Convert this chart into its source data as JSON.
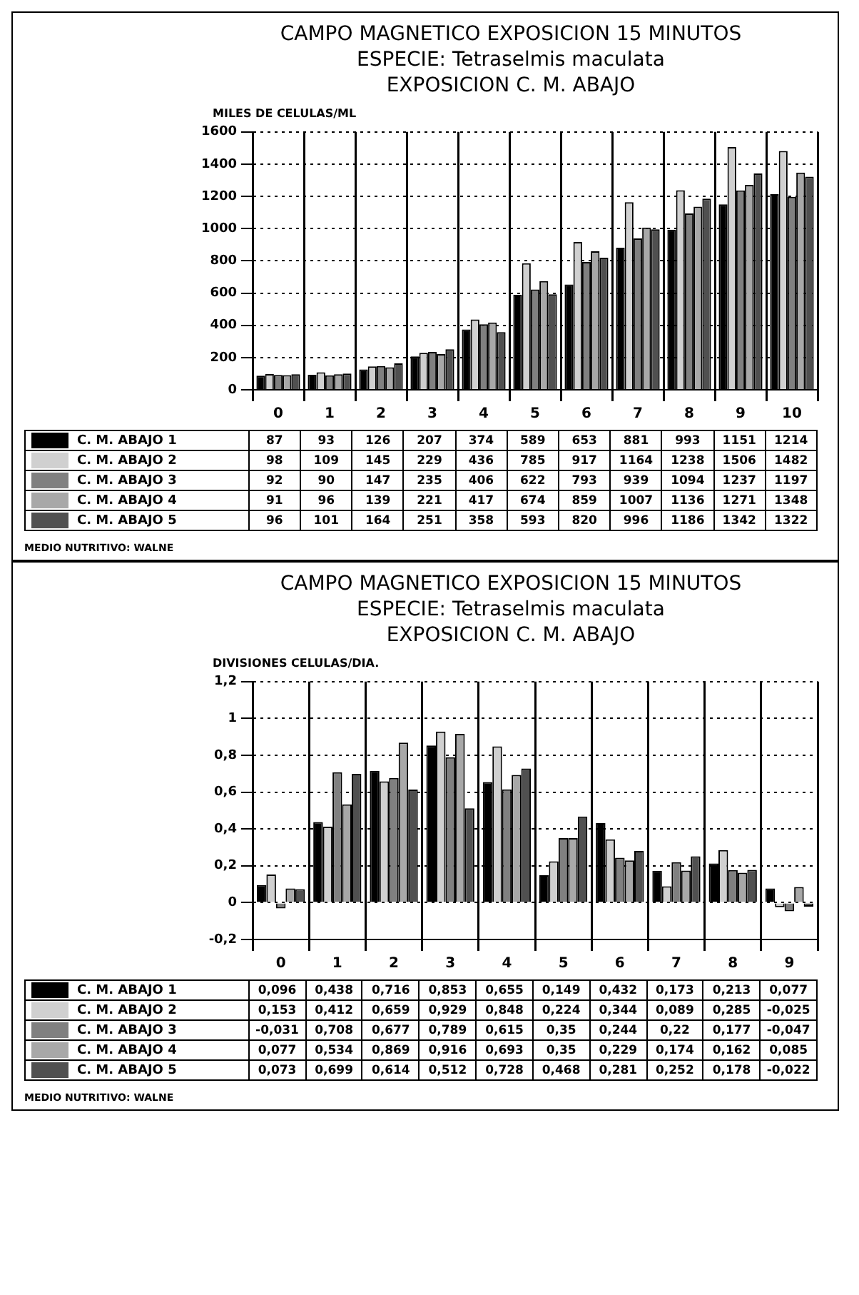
{
  "chart_data": [
    {
      "type": "bar",
      "title": "CAMPO MAGNETICO EXPOSICION 15 MINUTOS",
      "subtitle": "ESPECIE: Tetraselmis maculata\nEXPOSICION C. M. ABAJO",
      "ylabel": "MILES DE CELULAS/ML",
      "categories": [
        "0",
        "1",
        "2",
        "3",
        "4",
        "5",
        "6",
        "7",
        "8",
        "9",
        "10"
      ],
      "series": [
        {
          "name": "C. M. ABAJO 1",
          "color": "#000000",
          "values": [
            87,
            93,
            126,
            207,
            374,
            589,
            653,
            881,
            993,
            1151,
            1214
          ]
        },
        {
          "name": "C. M. ABAJO 2",
          "color": "#d0d0d0",
          "values": [
            98,
            109,
            145,
            229,
            436,
            785,
            917,
            1164,
            1238,
            1506,
            1482
          ]
        },
        {
          "name": "C. M. ABAJO 3",
          "color": "#808080",
          "values": [
            92,
            90,
            147,
            235,
            406,
            622,
            793,
            939,
            1094,
            1237,
            1197
          ]
        },
        {
          "name": "C. M. ABAJO 4",
          "color": "#a8a8a8",
          "values": [
            91,
            96,
            139,
            221,
            417,
            674,
            859,
            1007,
            1136,
            1271,
            1348
          ]
        },
        {
          "name": "C. M. ABAJO 5",
          "color": "#505050",
          "values": [
            96,
            101,
            164,
            251,
            358,
            593,
            820,
            996,
            1186,
            1342,
            1322
          ]
        }
      ],
      "ylim": [
        0,
        1600
      ],
      "yticks": [
        0,
        200,
        400,
        600,
        800,
        1000,
        1200,
        1400,
        1600
      ],
      "grid": true,
      "legend": "bottom",
      "data_labels": true,
      "annotations": [
        "MEDIO NUTRITIVO: WALNE"
      ]
    },
    {
      "type": "bar",
      "title": "CAMPO MAGNETICO EXPOSICION 15 MINUTOS",
      "subtitle": "ESPECIE: Tetraselmis maculata\nEXPOSICION C. M. ABAJO",
      "ylabel": "DIVISIONES CELULAS/DIA.",
      "categories": [
        "0",
        "1",
        "2",
        "3",
        "4",
        "5",
        "6",
        "7",
        "8",
        "9"
      ],
      "series": [
        {
          "name": "C. M. ABAJO 1",
          "color": "#000000",
          "values": [
            0.096,
            0.438,
            0.716,
            0.853,
            0.655,
            0.149,
            0.432,
            0.173,
            0.213,
            0.077
          ],
          "value_labels": [
            "0,096",
            "0,438",
            "0,716",
            "0,853",
            "0,655",
            "0,149",
            "0,432",
            "0,173",
            "0,213",
            "0,077"
          ]
        },
        {
          "name": "C. M. ABAJO 2",
          "color": "#d0d0d0",
          "values": [
            0.153,
            0.412,
            0.659,
            0.929,
            0.848,
            0.224,
            0.344,
            0.089,
            0.285,
            -0.025
          ],
          "value_labels": [
            "0,153",
            "0,412",
            "0,659",
            "0,929",
            "0,848",
            "0,224",
            "0,344",
            "0,089",
            "0,285",
            "-0,025"
          ]
        },
        {
          "name": "C. M. ABAJO 3",
          "color": "#808080",
          "values": [
            -0.031,
            0.708,
            0.677,
            0.789,
            0.615,
            0.35,
            0.244,
            0.22,
            0.177,
            -0.047
          ],
          "value_labels": [
            "-0,031",
            "0,708",
            "0,677",
            "0,789",
            "0,615",
            "0,35",
            "0,244",
            "0,22",
            "0,177",
            "-0,047"
          ]
        },
        {
          "name": "C. M. ABAJO 4",
          "color": "#a8a8a8",
          "values": [
            0.077,
            0.534,
            0.869,
            0.916,
            0.693,
            0.35,
            0.229,
            0.174,
            0.162,
            0.085
          ],
          "value_labels": [
            "0,077",
            "0,534",
            "0,869",
            "0,916",
            "0,693",
            "0,35",
            "0,229",
            "0,174",
            "0,162",
            "0,085"
          ]
        },
        {
          "name": "C. M. ABAJO 5",
          "color": "#505050",
          "values": [
            0.073,
            0.699,
            0.614,
            0.512,
            0.728,
            0.468,
            0.281,
            0.252,
            0.178,
            -0.022
          ],
          "value_labels": [
            "0,073",
            "0,699",
            "0,614",
            "0,512",
            "0,728",
            "0,468",
            "0,281",
            "0,252",
            "0,178",
            "-0,022"
          ]
        }
      ],
      "ylim": [
        -0.2,
        1.2
      ],
      "yticks": [
        {
          "value": -0.2,
          "label": "-0,2"
        },
        {
          "value": 0,
          "label": "0"
        },
        {
          "value": 0.2,
          "label": "0,2"
        },
        {
          "value": 0.4,
          "label": "0,4"
        },
        {
          "value": 0.6,
          "label": "0,6"
        },
        {
          "value": 0.8,
          "label": "0,8"
        },
        {
          "value": 1,
          "label": "1"
        },
        {
          "value": 1.2,
          "label": "1,2"
        }
      ],
      "grid": true,
      "legend": "bottom",
      "annotations": [
        "MEDIO NUTRITIVO: WALNE"
      ]
    }
  ]
}
